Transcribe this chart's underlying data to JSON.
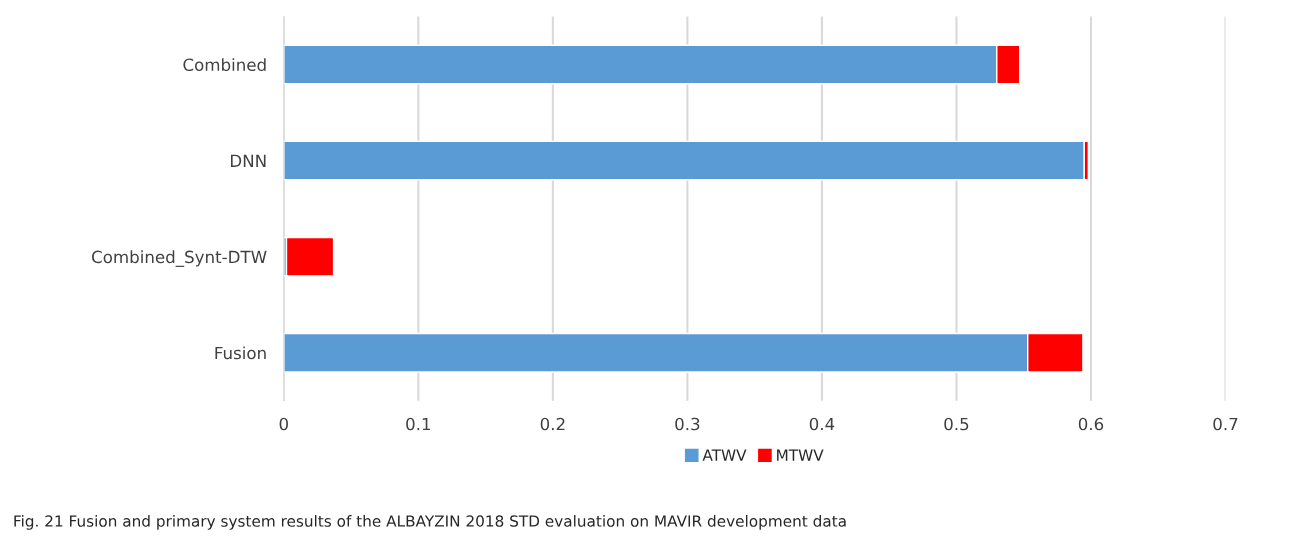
{
  "chart_data": {
    "type": "bar",
    "orientation": "horizontal",
    "stacked": true,
    "categories": [
      "Combined",
      "DNN",
      "Combined_Synt-DTW",
      "Fusion"
    ],
    "series": [
      {
        "name": "ATWV",
        "color": "#5b9bd5",
        "values": [
          0.53,
          0.595,
          0.002,
          0.553
        ]
      },
      {
        "name": "MTWV",
        "color": "#ff0000",
        "values": [
          0.017,
          0.003,
          0.035,
          0.041
        ]
      }
    ],
    "xlim": [
      0,
      0.7
    ],
    "xticks": [
      0,
      0.1,
      0.2,
      0.3,
      0.4,
      0.5,
      0.6,
      0.7
    ],
    "grid": "x",
    "legend": "bottom",
    "annotations": [
      "Fig. 21 Fusion and primary system results of the ALBAYZIN 2018 STD evaluation on MAVIR development data"
    ]
  }
}
